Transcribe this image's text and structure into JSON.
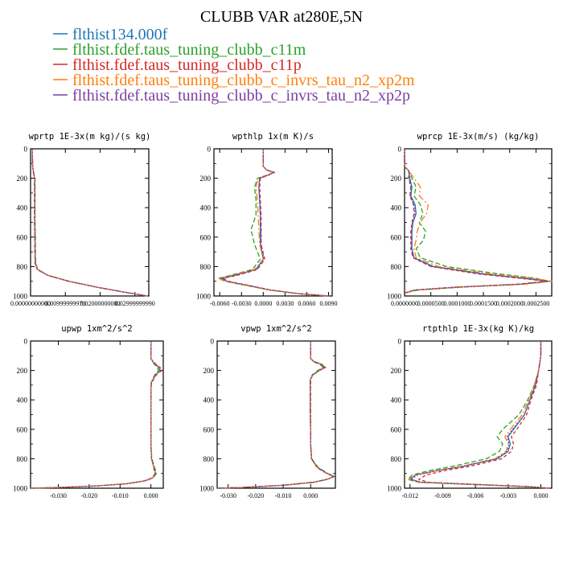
{
  "title": "CLUBB VAR at280E,5N",
  "legend": [
    {
      "label": "flthist134.000f",
      "color": "#1f77b4"
    },
    {
      "label": "flthist.fdef.taus_tuning_clubb_c11m",
      "color": "#2ca02c"
    },
    {
      "label": "flthist.fdef.taus_tuning_clubb_c11p",
      "color": "#d62728"
    },
    {
      "label": "flthist.fdef.taus_tuning_clubb_c_invrs_tau_n2_xp2m",
      "color": "#ff7f0e"
    },
    {
      "label": "flthist.fdef.taus_tuning_clubb_c_invrs_tau_n2_xp2p",
      "color": "#7b3fa0"
    }
  ],
  "chart_data": [
    {
      "type": "line",
      "title": "wprtp  1E-3x(m kg)/(s kg)",
      "xlim": [
        0.0,
        0.034
      ],
      "ylim": [
        1000,
        0
      ],
      "xticks": [
        "0.00000000000",
        "0.00999999978",
        "0.02000000000",
        "0.02999999990"
      ],
      "xtick_values": [
        0.0,
        0.01,
        0.02,
        0.03
      ],
      "yticks": [
        0,
        200,
        400,
        600,
        800,
        1000
      ],
      "y": [
        0,
        120,
        180,
        200,
        300,
        400,
        500,
        600,
        700,
        780,
        820,
        860,
        900,
        940,
        970,
        990,
        1000
      ],
      "series_values": [
        [
          0.0005,
          0.0006,
          0.001,
          0.0012,
          0.0012,
          0.0012,
          0.0012,
          0.0013,
          0.0013,
          0.0014,
          0.002,
          0.005,
          0.011,
          0.019,
          0.026,
          0.031,
          0.0335
        ],
        [
          0.0005,
          0.0006,
          0.001,
          0.0013,
          0.0013,
          0.0013,
          0.0013,
          0.0014,
          0.0014,
          0.0015,
          0.0021,
          0.0051,
          0.0111,
          0.0191,
          0.0261,
          0.0311,
          0.0336
        ],
        [
          0.0005,
          0.0006,
          0.0009,
          0.0011,
          0.0011,
          0.0011,
          0.0011,
          0.0012,
          0.0012,
          0.0013,
          0.0019,
          0.0049,
          0.0109,
          0.0189,
          0.0259,
          0.0309,
          0.0334
        ],
        [
          0.0005,
          0.0006,
          0.001,
          0.0012,
          0.0012,
          0.0012,
          0.0012,
          0.0013,
          0.0013,
          0.0014,
          0.002,
          0.005,
          0.011,
          0.019,
          0.026,
          0.031,
          0.0335
        ],
        [
          0.0005,
          0.0006,
          0.001,
          0.0012,
          0.0012,
          0.0012,
          0.0012,
          0.0013,
          0.0013,
          0.0014,
          0.002,
          0.005,
          0.011,
          0.019,
          0.026,
          0.031,
          0.0335
        ]
      ]
    },
    {
      "type": "line",
      "title": "wpthlp  1x(m K)/s",
      "xlim": [
        -0.0068,
        0.0095
      ],
      "ylim": [
        1000,
        0
      ],
      "xticks": [
        "-0.0060",
        "-0.0030",
        "0.0000",
        "0.0030",
        "0.0060",
        "0.0090"
      ],
      "xtick_values": [
        -0.006,
        -0.003,
        0.0,
        0.003,
        0.006,
        0.009
      ],
      "yticks": [
        0,
        200,
        400,
        600,
        800,
        1000
      ],
      "y": [
        0,
        120,
        145,
        160,
        180,
        200,
        260,
        350,
        450,
        550,
        650,
        750,
        820,
        860,
        880,
        900,
        930,
        960,
        985,
        1000
      ],
      "series_values": [
        [
          0.0,
          0.0,
          0.0005,
          0.0015,
          0.0006,
          -0.0005,
          -0.0006,
          -0.0005,
          -0.0004,
          -0.0004,
          -0.0004,
          0.0,
          -0.001,
          -0.004,
          -0.0058,
          -0.005,
          -0.002,
          0.001,
          0.005,
          0.009
        ],
        [
          0.0,
          0.0,
          0.0005,
          0.0014,
          0.0004,
          -0.0008,
          -0.0012,
          -0.001,
          -0.001,
          -0.0017,
          -0.0012,
          -0.0004,
          -0.0015,
          -0.0046,
          -0.0062,
          -0.0053,
          -0.0022,
          0.0009,
          0.0049,
          0.009
        ],
        [
          0.0,
          0.0,
          0.0005,
          0.0015,
          0.0007,
          -0.0004,
          -0.0005,
          -0.0004,
          -0.0003,
          -0.0003,
          -0.0003,
          0.0002,
          -0.0008,
          -0.0036,
          -0.0055,
          -0.0048,
          -0.0018,
          0.0011,
          0.0051,
          0.0091
        ],
        [
          0.0,
          0.0,
          0.0005,
          0.0016,
          0.0005,
          -0.0007,
          -0.001,
          -0.0008,
          -0.0007,
          -0.0006,
          -0.0005,
          0.0,
          -0.0012,
          -0.0044,
          -0.0061,
          -0.0052,
          -0.0021,
          0.001,
          0.005,
          0.009
        ],
        [
          0.0,
          0.0,
          0.0005,
          0.0015,
          0.0006,
          -0.0005,
          -0.0006,
          -0.0005,
          -0.0004,
          -0.0003,
          -0.0003,
          0.0001,
          -0.0009,
          -0.0039,
          -0.0057,
          -0.005,
          -0.0019,
          0.001,
          0.005,
          0.009
        ]
      ]
    },
    {
      "type": "line",
      "title": "wprcp  1E-3x(m/s) (kg/kg)",
      "xlim": [
        0.0,
        0.00028
      ],
      "ylim": [
        1000,
        0
      ],
      "xticks": [
        "0.0000000",
        "0.0000500",
        "0.0001000",
        "0.0001500",
        "0.0002000",
        "0.0002500"
      ],
      "xtick_values": [
        0.0,
        5e-05,
        0.0001,
        0.00015,
        0.0002,
        0.00025
      ],
      "yticks": [
        0,
        200,
        400,
        600,
        800,
        1000
      ],
      "y": [
        0,
        120,
        150,
        200,
        260,
        320,
        380,
        440,
        500,
        560,
        620,
        680,
        740,
        800,
        850,
        880,
        900,
        920,
        940,
        960,
        980
      ],
      "series_values": [
        [
          0.0,
          0.0,
          8e-06,
          1e-05,
          1.4e-05,
          1.2e-05,
          2e-05,
          2.2e-05,
          1.6e-05,
          1.4e-05,
          1.4e-05,
          1.4e-05,
          1.8e-05,
          5.5e-05,
          0.00015,
          0.00023,
          0.000275,
          0.00022,
          0.0001,
          2e-05,
          0.0
        ],
        [
          0.0,
          0.0,
          8e-06,
          1.4e-05,
          2.2e-05,
          1.8e-05,
          3e-05,
          3.5e-05,
          2.8e-05,
          4e-05,
          3.6e-05,
          2.2e-05,
          3e-05,
          8e-05,
          0.00018,
          0.00025,
          0.000275,
          0.000225,
          0.00011,
          2.5e-05,
          0.0
        ],
        [
          0.0,
          0.0,
          8e-06,
          8e-06,
          1.2e-05,
          1e-05,
          1.7e-05,
          1.8e-05,
          1.4e-05,
          1.2e-05,
          1.2e-05,
          1.2e-05,
          1.6e-05,
          5e-05,
          0.00014,
          0.00022,
          0.00027,
          0.000215,
          9.5e-05,
          1.8e-05,
          0.0
        ],
        [
          0.0,
          0.0,
          8e-06,
          1.8e-05,
          3e-05,
          2.8e-05,
          4.5e-05,
          4.2e-05,
          3e-05,
          2.4e-05,
          2.2e-05,
          1.8e-05,
          2.2e-05,
          6.5e-05,
          0.000165,
          0.000245,
          0.00028,
          0.00023,
          0.000105,
          2.2e-05,
          0.0
        ],
        [
          0.0,
          0.0,
          8e-06,
          9e-06,
          1.2e-05,
          1.1e-05,
          1.8e-05,
          2e-05,
          1.5e-05,
          1.3e-05,
          1.3e-05,
          1.3e-05,
          1.7e-05,
          5.2e-05,
          0.000145,
          0.000225,
          0.000272,
          0.000218,
          9.8e-05,
          1.9e-05,
          0.0
        ]
      ]
    },
    {
      "type": "line",
      "title": "upwp  1xm^2/s^2",
      "xlim": [
        -0.039,
        0.004
      ],
      "ylim": [
        1000,
        0
      ],
      "xticks": [
        "-0.030",
        "-0.020",
        "-0.010",
        "0.000"
      ],
      "xtick_values": [
        -0.03,
        -0.02,
        -0.01,
        0.0
      ],
      "yticks": [
        0,
        200,
        400,
        600,
        800,
        1000
      ],
      "y": [
        0,
        120,
        150,
        180,
        200,
        230,
        280,
        320,
        400,
        500,
        600,
        700,
        800,
        860,
        900,
        930,
        950,
        970,
        985,
        995,
        1000
      ],
      "series_values": [
        [
          0.0,
          0.0,
          0.001,
          0.0025,
          0.003,
          0.0015,
          0.0002,
          0.0,
          0.0,
          0.0,
          0.0,
          0.0,
          0.0002,
          0.001,
          0.0015,
          0.0005,
          -0.002,
          -0.008,
          -0.018,
          -0.03,
          -0.039
        ],
        [
          0.0,
          0.0,
          0.0008,
          0.002,
          0.0025,
          0.0012,
          0.0001,
          0.0,
          0.0,
          0.0,
          0.0,
          0.0,
          0.0003,
          0.0012,
          0.0018,
          0.0007,
          -0.0018,
          -0.0078,
          -0.0178,
          -0.0298,
          -0.039
        ],
        [
          0.0,
          0.0,
          0.0012,
          0.003,
          0.0035,
          0.0018,
          0.0003,
          0.0,
          0.0,
          0.0,
          0.0,
          0.0,
          0.0002,
          0.0009,
          0.0013,
          0.0004,
          -0.0021,
          -0.0081,
          -0.0181,
          -0.0301,
          -0.039
        ],
        [
          0.0,
          0.0,
          0.001,
          0.0028,
          0.0032,
          0.0016,
          0.0002,
          0.0,
          0.0,
          0.0,
          0.0,
          0.0,
          0.0002,
          0.001,
          0.0015,
          0.0005,
          -0.002,
          -0.008,
          -0.018,
          -0.03,
          -0.039
        ],
        [
          0.0,
          0.0,
          0.0011,
          0.0026,
          0.0031,
          0.0015,
          0.0002,
          0.0,
          0.0,
          0.0,
          0.0,
          0.0,
          0.0002,
          0.001,
          0.0015,
          0.0005,
          -0.002,
          -0.008,
          -0.018,
          -0.03,
          -0.039
        ]
      ]
    },
    {
      "type": "line",
      "title": "vpwp  1xm^2/s^2",
      "xlim": [
        -0.034,
        0.009
      ],
      "ylim": [
        1000,
        0
      ],
      "xticks": [
        "-0.030",
        "-0.020",
        "-0.010",
        "0.000"
      ],
      "xtick_values": [
        -0.03,
        -0.02,
        -0.01,
        0.0
      ],
      "yticks": [
        0,
        200,
        400,
        600,
        800,
        1000
      ],
      "y": [
        0,
        120,
        140,
        160,
        180,
        200,
        230,
        260,
        300,
        400,
        500,
        600,
        700,
        800,
        860,
        900,
        920,
        940,
        960,
        980,
        995,
        1000
      ],
      "series_values": [
        [
          0.0,
          0.0,
          0.0012,
          0.004,
          0.005,
          0.003,
          0.0008,
          -0.0001,
          -0.0001,
          -0.0001,
          -0.0001,
          0.0,
          0.0,
          0.0003,
          0.0025,
          0.006,
          0.0085,
          0.006,
          0.001,
          -0.01,
          -0.025,
          -0.034
        ],
        [
          0.0,
          0.0,
          0.001,
          0.0035,
          0.0045,
          0.0026,
          0.0006,
          -0.0002,
          -0.0002,
          -0.0002,
          -0.0002,
          0.0,
          0.0,
          0.0004,
          0.0028,
          0.0063,
          0.0087,
          0.0061,
          0.0011,
          -0.0099,
          -0.0249,
          -0.034
        ],
        [
          0.0,
          0.0,
          0.0014,
          0.0042,
          0.0054,
          0.0032,
          0.0009,
          0.0,
          0.0,
          0.0,
          0.0,
          0.0,
          0.0,
          0.0003,
          0.0023,
          0.0058,
          0.0083,
          0.0059,
          0.0009,
          -0.0101,
          -0.0251,
          -0.034
        ],
        [
          0.0,
          0.0,
          0.0013,
          0.0044,
          0.0056,
          0.0033,
          0.0008,
          -0.0001,
          -0.0001,
          -0.0001,
          -0.0001,
          0.0,
          0.0,
          0.0003,
          0.0025,
          0.006,
          0.0086,
          0.006,
          0.001,
          -0.01,
          -0.025,
          -0.034
        ],
        [
          0.0,
          0.0,
          0.0012,
          0.0041,
          0.0052,
          0.0031,
          0.0008,
          -0.0001,
          -0.0001,
          -0.0001,
          -0.0001,
          0.0,
          0.0,
          0.0003,
          0.0025,
          0.006,
          0.0085,
          0.006,
          0.001,
          -0.01,
          -0.025,
          -0.034
        ]
      ]
    },
    {
      "type": "line",
      "title": "rtpthlp  1E-3x(kg K)/kg",
      "xlim": [
        -0.0125,
        0.001
      ],
      "ylim": [
        1000,
        0
      ],
      "xticks": [
        "-0.012",
        "-0.009",
        "-0.006",
        "-0.003",
        "0.000"
      ],
      "xtick_values": [
        -0.012,
        -0.009,
        -0.006,
        -0.003,
        0.0
      ],
      "yticks": [
        0,
        200,
        400,
        600,
        800,
        1000
      ],
      "y": [
        0,
        100,
        200,
        300,
        400,
        500,
        600,
        650,
        700,
        750,
        800,
        850,
        880,
        910,
        940,
        960,
        975,
        990,
        1000
      ],
      "series_values": [
        [
          0.0,
          0.0,
          -0.0002,
          -0.0005,
          -0.001,
          -0.0015,
          -0.0025,
          -0.003,
          -0.0028,
          -0.003,
          -0.004,
          -0.007,
          -0.0095,
          -0.0115,
          -0.012,
          -0.011,
          -0.006,
          -0.001,
          0.0008
        ],
        [
          0.0,
          0.0,
          -0.0002,
          -0.0006,
          -0.0012,
          -0.002,
          -0.0035,
          -0.004,
          -0.0035,
          -0.0038,
          -0.005,
          -0.008,
          -0.0102,
          -0.0118,
          -0.0122,
          -0.0112,
          -0.0062,
          -0.0011,
          0.0008
        ],
        [
          0.0,
          0.0,
          -0.0002,
          -0.0004,
          -0.0009,
          -0.0013,
          -0.0022,
          -0.0027,
          -0.0025,
          -0.0027,
          -0.0036,
          -0.0064,
          -0.0088,
          -0.0105,
          -0.0112,
          -0.0103,
          -0.0056,
          -0.0009,
          0.0008
        ],
        [
          0.0,
          0.0,
          -0.0002,
          -0.0006,
          -0.0011,
          -0.0017,
          -0.0028,
          -0.0033,
          -0.003,
          -0.0032,
          -0.0042,
          -0.0072,
          -0.0096,
          -0.0116,
          -0.0121,
          -0.0111,
          -0.0061,
          -0.001,
          0.0008
        ],
        [
          0.0,
          0.0,
          -0.0002,
          -0.0005,
          -0.001,
          -0.0015,
          -0.0026,
          -0.0031,
          -0.0029,
          -0.0031,
          -0.0041,
          -0.0071,
          -0.0094,
          -0.0113,
          -0.0119,
          -0.0109,
          -0.0059,
          -0.001,
          0.0008
        ]
      ]
    }
  ]
}
